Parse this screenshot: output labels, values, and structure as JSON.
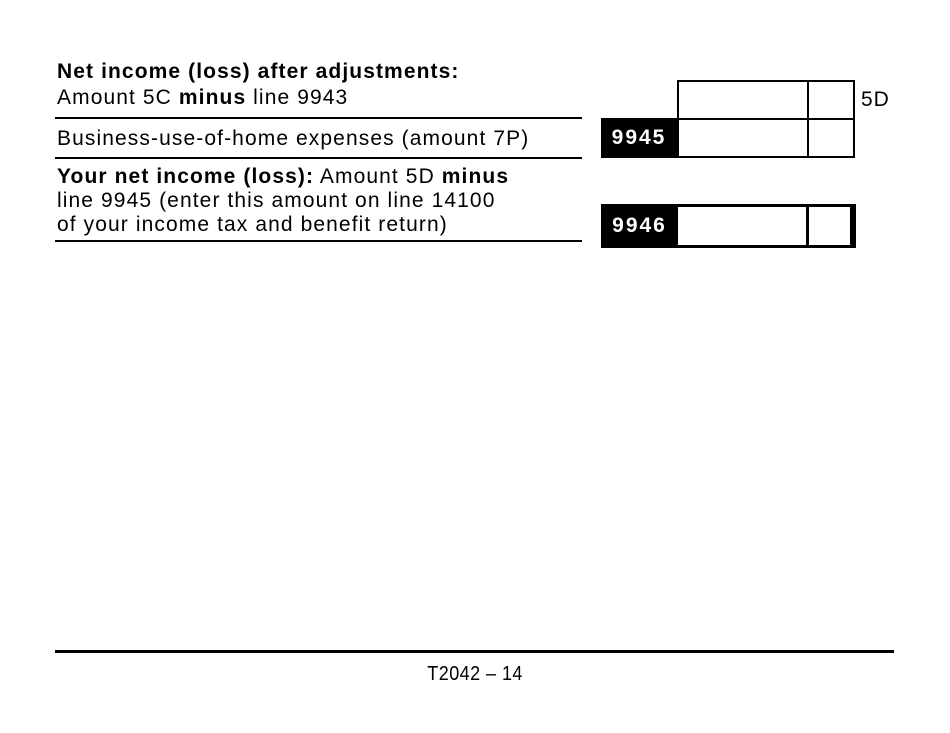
{
  "colors": {
    "ink": "#000000",
    "paper": "#ffffff",
    "code_label_bg": "#000000",
    "code_label_fg": "#ffffff"
  },
  "sections": {
    "net_income_after_adjustments": {
      "title": "Net income (loss) after adjustments:",
      "line2_pre": "Amount 5C ",
      "line2_bold": "minus",
      "line2_post": " line 9943",
      "amount_ref": "5D",
      "dollars_value": "",
      "cents_value": ""
    },
    "business_use_of_home": {
      "label": "Business-use-of-home expenses (amount 7P)",
      "line_code": "9945",
      "dollars_value": "",
      "cents_value": ""
    },
    "your_net_income": {
      "line1_bold": "Your net income (loss):",
      "line1_mid": " Amount 5D ",
      "line1_bold2": "minus",
      "line2": "line 9945 (enter this amount on line 14100",
      "line3": "of your income tax and benefit return)",
      "line_code": "9946",
      "dollars_value": "",
      "cents_value": ""
    }
  },
  "footer": {
    "page_code": "T2042 – 14"
  }
}
